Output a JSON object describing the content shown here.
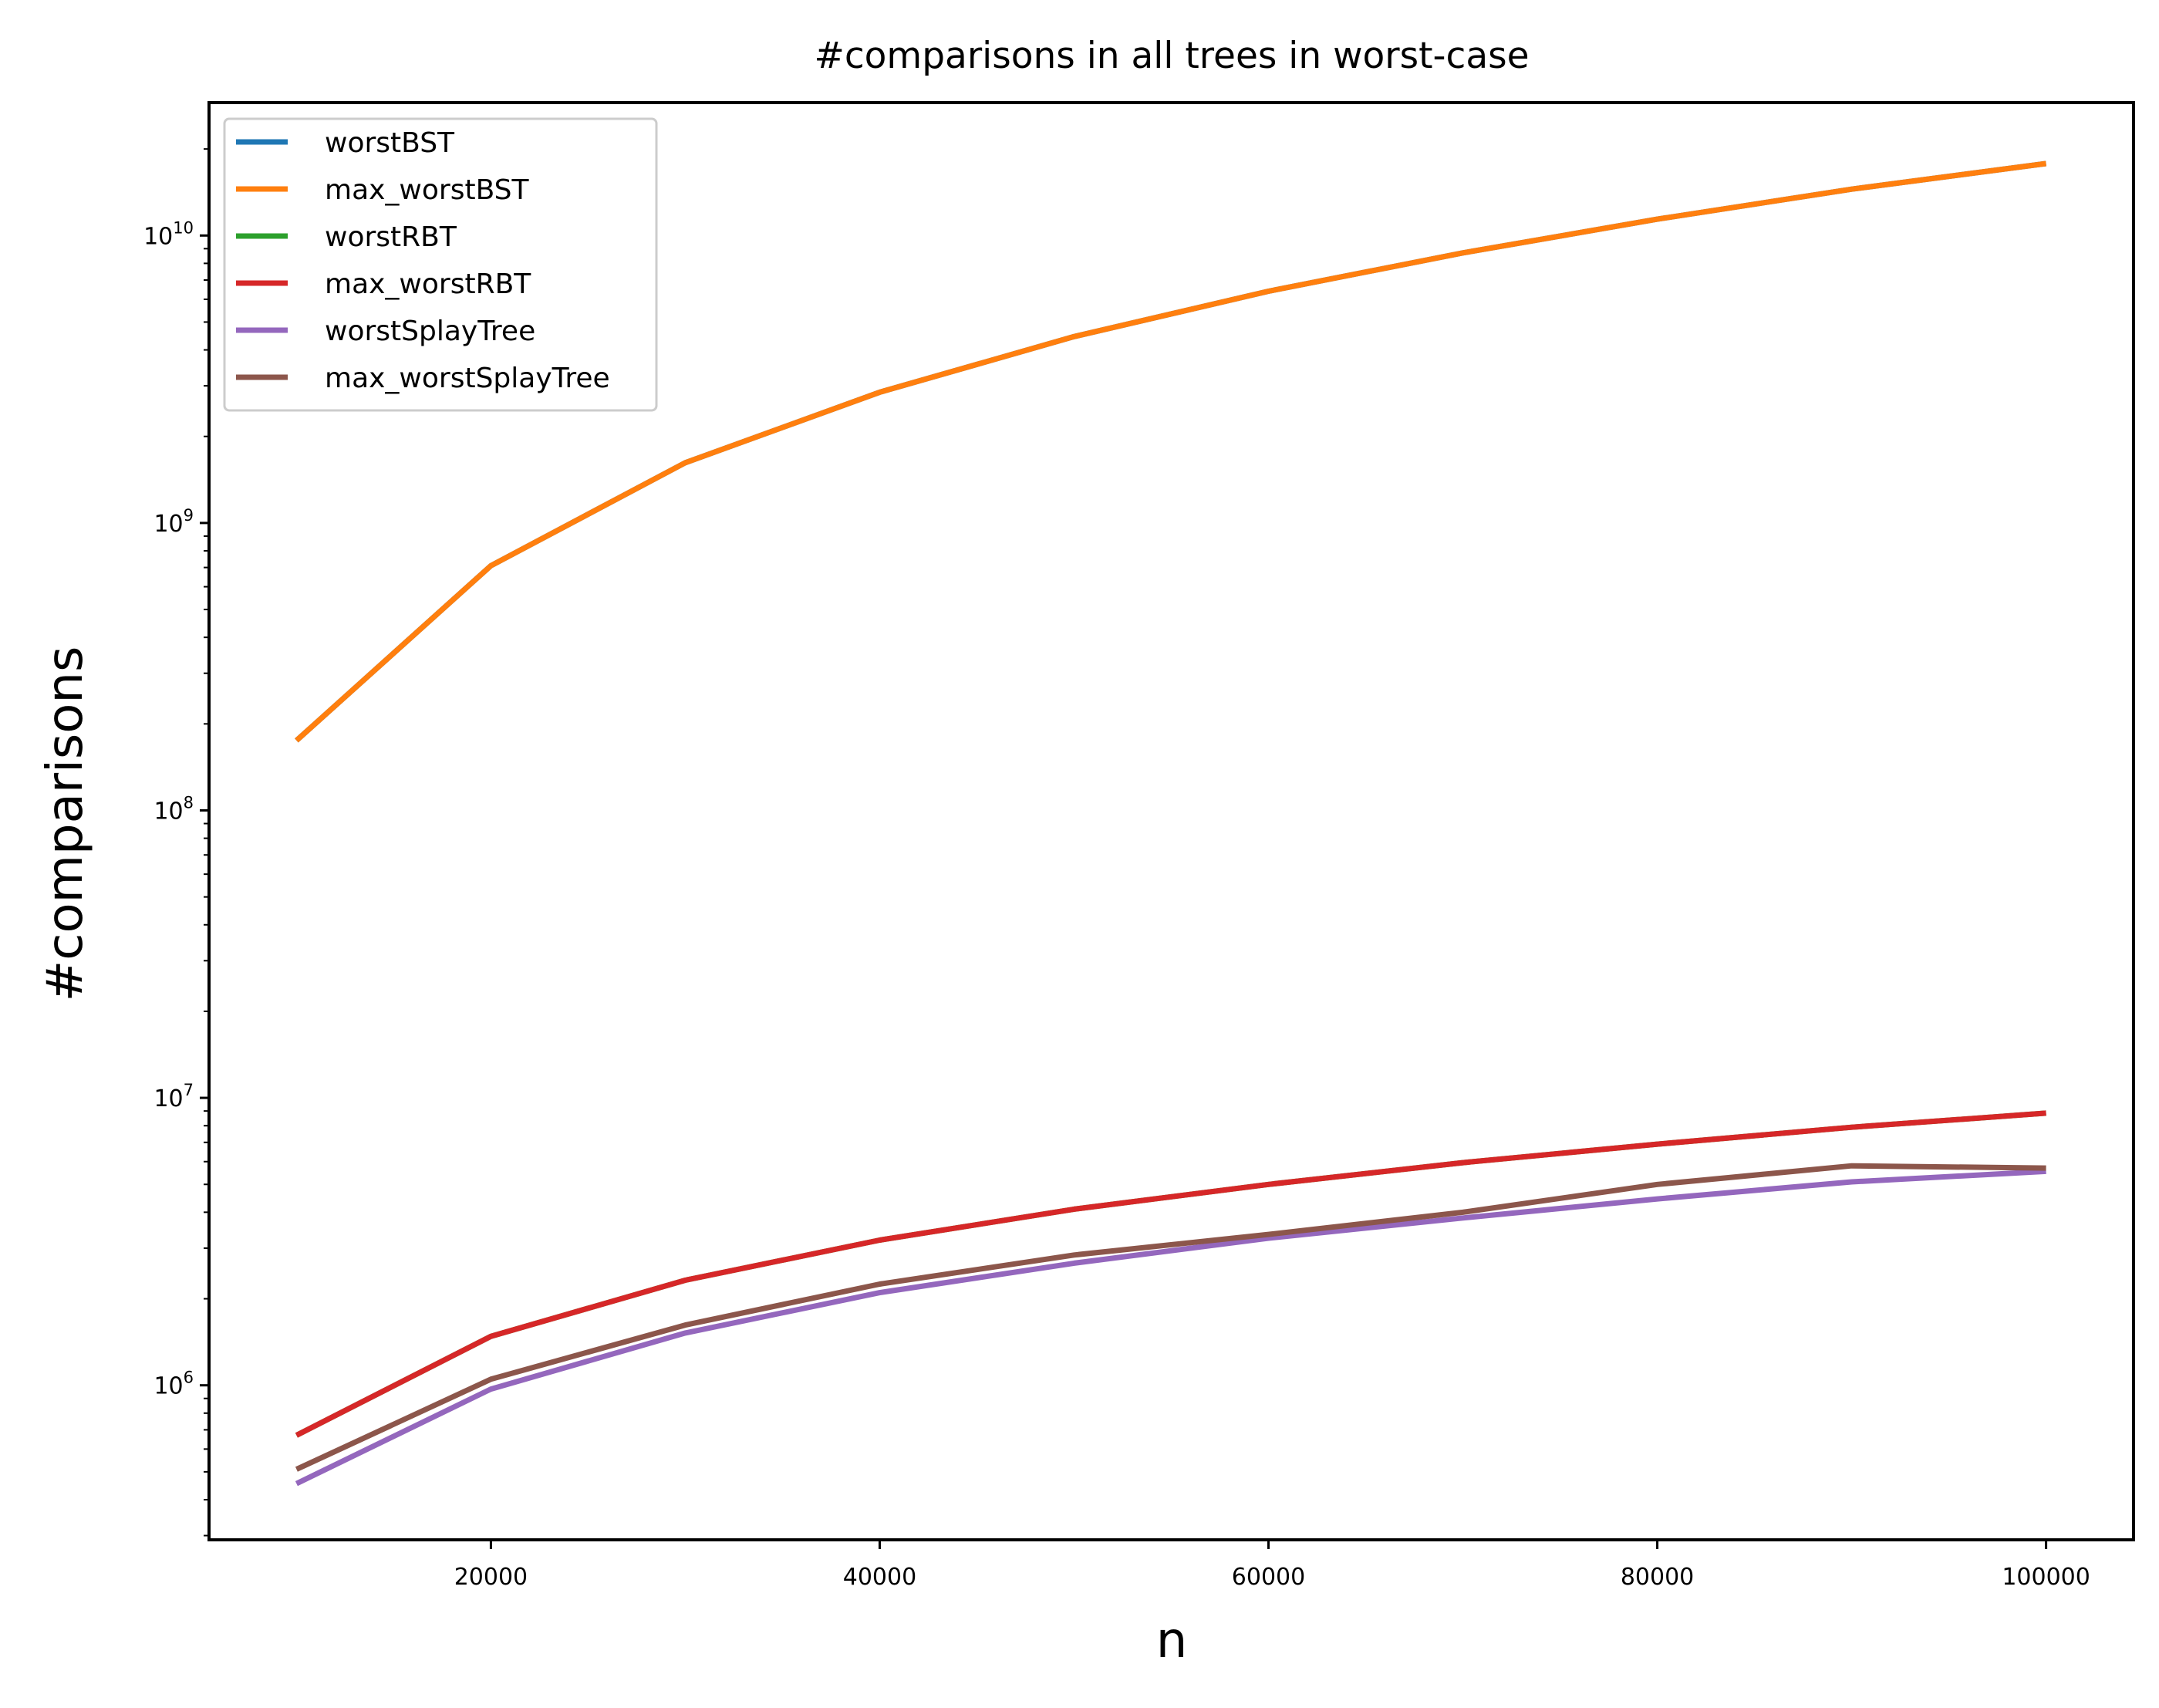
{
  "chart_data": {
    "type": "line",
    "title": "#comparisons in all trees in worst-case",
    "xlabel": "n",
    "ylabel": "#comparisons",
    "y_scale": "log",
    "ylim": [
      290000,
      29000000000
    ],
    "xlim": [
      5500,
      104500
    ],
    "x_ticks": [
      20000,
      40000,
      60000,
      80000,
      100000
    ],
    "y_ticks": [
      {
        "base": "10",
        "exp": "6",
        "value": 1000000
      },
      {
        "base": "10",
        "exp": "7",
        "value": 10000000
      },
      {
        "base": "10",
        "exp": "8",
        "value": 100000000
      },
      {
        "base": "10",
        "exp": "9",
        "value": 1000000000
      },
      {
        "base": "10",
        "exp": "10",
        "value": 10000000000
      }
    ],
    "grid": false,
    "legend_position": "top-left",
    "x": [
      10000,
      20000,
      30000,
      40000,
      50000,
      60000,
      70000,
      80000,
      90000,
      100000
    ],
    "series": [
      {
        "name": "worstBST",
        "color": "#1f77b4",
        "values": [
          175000000,
          710000000,
          1620000000,
          2850000000,
          4450000000,
          6400000000,
          8700000000,
          11400000000,
          14500000000,
          17800000000
        ]
      },
      {
        "name": "max_worstBST",
        "color": "#ff7f0e",
        "values": [
          175000000,
          710000000,
          1620000000,
          2850000000,
          4450000000,
          6400000000,
          8700000000,
          11400000000,
          14500000000,
          17800000000
        ]
      },
      {
        "name": "worstRBT",
        "color": "#2ca02c",
        "values": [
          670000,
          1480000,
          2320000,
          3200000,
          4100000,
          5000000,
          5950000,
          6900000,
          7900000,
          8850000
        ]
      },
      {
        "name": "max_worstRBT",
        "color": "#d62728",
        "values": [
          670000,
          1480000,
          2320000,
          3200000,
          4100000,
          5000000,
          5950000,
          6900000,
          7900000,
          8850000
        ]
      },
      {
        "name": "worstSplayTree",
        "color": "#9467bd",
        "values": [
          455000,
          970000,
          1520000,
          2100000,
          2660000,
          3250000,
          3820000,
          4450000,
          5100000,
          5550000
        ]
      },
      {
        "name": "max_worstSplayTree",
        "color": "#8c564b",
        "values": [
          510000,
          1050000,
          1620000,
          2250000,
          2840000,
          3350000,
          4000000,
          5000000,
          5800000,
          5700000
        ]
      }
    ]
  }
}
